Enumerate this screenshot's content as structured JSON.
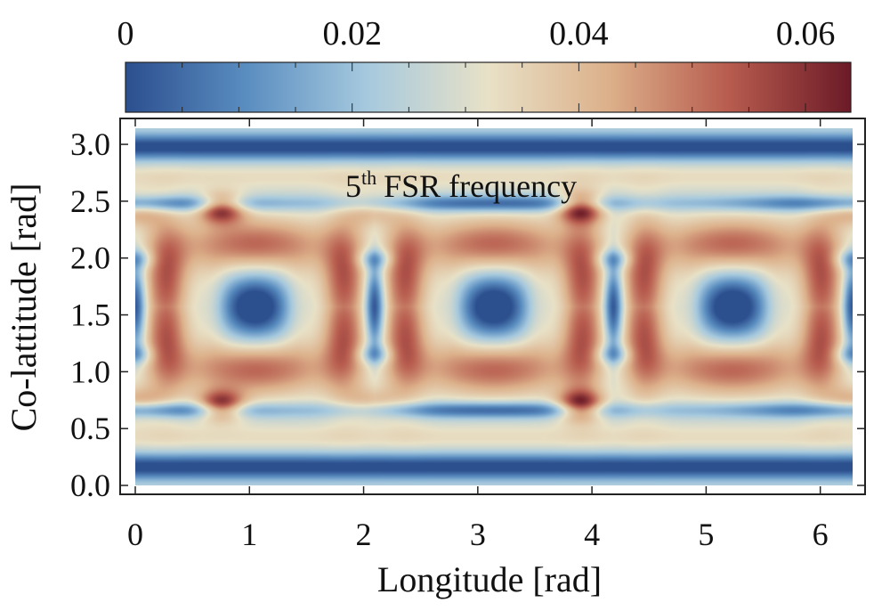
{
  "chart_data": {
    "type": "heatmap",
    "title": "",
    "annotation": {
      "superscript_prefix": "5",
      "superscript": "th",
      "text": "FSR frequency"
    },
    "xlabel": "Longitude [rad]",
    "ylabel": "Co-lattitude [rad]",
    "xlim": [
      0,
      6.2832
    ],
    "ylim": [
      0,
      3.1416
    ],
    "xticks": [
      0,
      1,
      2,
      3,
      4,
      5,
      6
    ],
    "xtick_labels": [
      "0",
      "1",
      "2",
      "3",
      "4",
      "5",
      "6"
    ],
    "yticks": [
      0.0,
      0.5,
      1.0,
      1.5,
      2.0,
      2.5,
      3.0
    ],
    "ytick_labels": [
      "0.0",
      "0.5",
      "1.0",
      "1.5",
      "2.0",
      "2.5",
      "3.0"
    ],
    "colorbar": {
      "range": [
        0,
        0.064
      ],
      "ticks": [
        0,
        0.02,
        0.04,
        0.06
      ],
      "tick_labels": [
        "0",
        "0.02",
        "0.04",
        "0.06"
      ],
      "placement": "top",
      "colormap": [
        "#2c4f8e",
        "#5a8dc0",
        "#a6c9de",
        "#e8e1c7",
        "#dcb08a",
        "#b75b4e",
        "#6b1a27"
      ]
    },
    "pattern": {
      "longitude_periods": 3,
      "description": "symmetric about co-latitude pi/2; hot ring lobes near co-latitude 1.0 and 2.1, cold cores near 1.5; cold bands near 0.15, 0.65, 2.5, 3.0"
    }
  }
}
